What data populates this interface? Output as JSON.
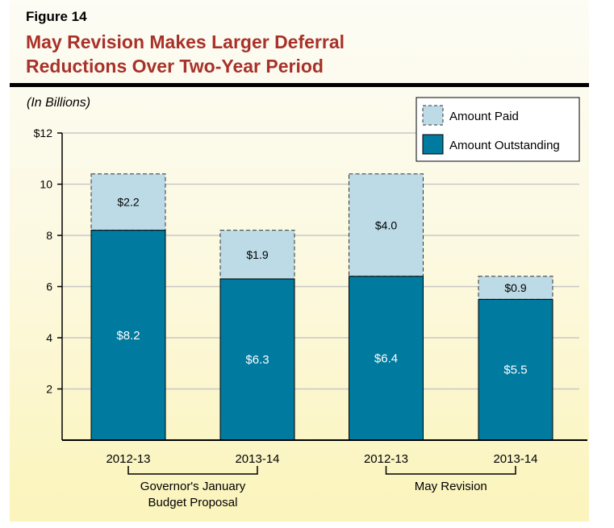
{
  "figure_label": "Figure 14",
  "chart_data": {
    "type": "bar",
    "stacked": true,
    "title": "May Revision Makes Larger Deferral Reductions Over Two-Year Period",
    "title_lines": [
      "May Revision Makes Larger Deferral",
      "Reductions Over Two-Year Period"
    ],
    "unit_label": "(In Billions)",
    "categories": [
      "2012-13",
      "2013-14",
      "2012-13",
      "2013-14"
    ],
    "groups": [
      {
        "label_lines": [
          "Governor's January",
          "Budget Proposal"
        ],
        "categories": [
          0,
          1
        ]
      },
      {
        "label_lines": [
          "May Revision"
        ],
        "categories": [
          2,
          3
        ]
      }
    ],
    "series": [
      {
        "name": "Amount Outstanding",
        "values": [
          8.2,
          6.3,
          6.4,
          5.5
        ],
        "labels": [
          "$8.2",
          "$6.3",
          "$6.4",
          "$5.5"
        ],
        "color": "#007a9e"
      },
      {
        "name": "Amount Paid",
        "values": [
          2.2,
          1.9,
          4.0,
          0.9
        ],
        "labels": [
          "$2.2",
          "$1.9",
          "$4.0",
          "$0.9"
        ],
        "color": "#bcdbe6"
      }
    ],
    "ylim": [
      0,
      12
    ],
    "yticks": [
      2,
      4,
      6,
      8,
      10,
      12
    ],
    "ytick_labels": [
      "2",
      "4",
      "6",
      "8",
      "10",
      "$12"
    ],
    "grid": true,
    "legend_position": "top-right",
    "legend": [
      "Amount Paid",
      "Amount Outstanding"
    ]
  },
  "colors": {
    "title": "#a8322a",
    "background_top": "#fdfcf4",
    "background_bottom": "#fbf4bd"
  }
}
